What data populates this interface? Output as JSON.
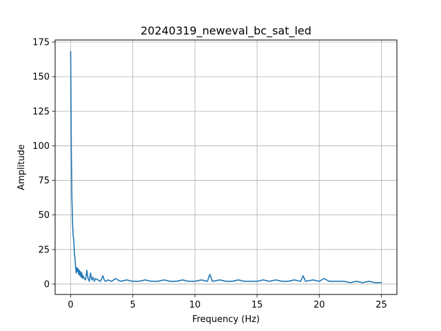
{
  "chart_data": {
    "type": "line",
    "title": "20240319_neweval_bc_sat_led",
    "xlabel": "Frequency (Hz)",
    "ylabel": "Amplitude",
    "xlim": [
      -1.25,
      26.25
    ],
    "ylim": [
      -7.5,
      176.5
    ],
    "xticks": [
      0,
      5,
      10,
      15,
      20,
      25
    ],
    "xtick_labels": [
      "0",
      "5",
      "10",
      "15",
      "20",
      "25"
    ],
    "yticks": [
      0,
      25,
      50,
      75,
      100,
      125,
      150,
      175
    ],
    "ytick_labels": [
      "0",
      "25",
      "50",
      "75",
      "100",
      "125",
      "150",
      "175"
    ],
    "grid": true,
    "legend": "none",
    "line_color": "#1f77b4",
    "series": [
      {
        "x": [
          0.0,
          0.05,
          0.1,
          0.15,
          0.2,
          0.25,
          0.3,
          0.35,
          0.4,
          0.45,
          0.5,
          0.55,
          0.6,
          0.65,
          0.7,
          0.75,
          0.8,
          0.85,
          0.9,
          0.95,
          1.0,
          1.1,
          1.2,
          1.3,
          1.4,
          1.5,
          1.6,
          1.7,
          1.8,
          1.9,
          2.0,
          2.2,
          2.4,
          2.6,
          2.7,
          2.8,
          3.0,
          3.3,
          3.6,
          4.0,
          4.5,
          5.0,
          5.5,
          6.0,
          6.5,
          7.0,
          7.5,
          8.0,
          8.5,
          9.0,
          9.5,
          10.0,
          10.5,
          11.0,
          11.2,
          11.4,
          12.0,
          12.5,
          13.0,
          13.5,
          14.0,
          14.5,
          15.0,
          15.5,
          16.0,
          16.5,
          17.0,
          17.5,
          18.0,
          18.5,
          18.7,
          18.9,
          19.5,
          20.0,
          20.4,
          20.8,
          21.5,
          22.0,
          22.5,
          23.0,
          23.5,
          24.0,
          24.5,
          25.0
        ],
        "values": [
          168,
          100,
          62,
          45,
          35,
          32,
          22,
          18,
          12,
          8,
          12,
          9,
          11,
          7,
          10,
          6,
          9,
          5,
          8,
          4,
          6,
          4,
          3,
          10,
          4,
          2,
          8,
          3,
          5,
          2,
          4,
          3,
          2,
          6,
          3,
          2,
          3,
          2,
          4,
          2,
          3,
          2,
          2,
          3,
          2,
          2,
          3,
          2,
          2,
          3,
          2,
          2,
          3,
          2,
          7,
          2,
          3,
          2,
          2,
          3,
          2,
          2,
          2,
          3,
          2,
          3,
          2,
          2,
          3,
          2,
          6,
          2,
          3,
          2,
          4,
          2,
          2,
          2,
          1,
          2,
          1,
          2,
          1,
          1
        ]
      }
    ]
  }
}
